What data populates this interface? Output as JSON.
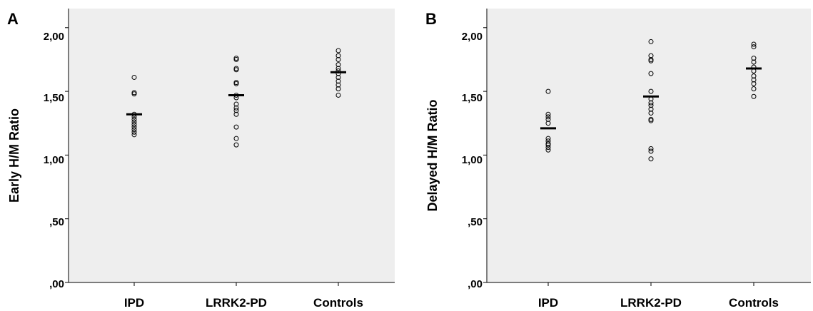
{
  "chart_data": [
    {
      "type": "scatter",
      "panel_label": "A",
      "ylabel": "Early H/M Ratio",
      "xlabel": "",
      "categories": [
        "IPD",
        "LRRK2-PD",
        "Controls"
      ],
      "ylim": [
        0,
        2.15
      ],
      "yticks": [
        0.0,
        0.5,
        1.0,
        1.5,
        2.0
      ],
      "ytick_labels": [
        ",00",
        ",50",
        "1,00",
        "1,50",
        "2,00"
      ],
      "grid": false,
      "points": [
        [
          1.61,
          1.49,
          1.48,
          1.32,
          1.3,
          1.28,
          1.26,
          1.24,
          1.22,
          1.2,
          1.18,
          1.16
        ],
        [
          1.76,
          1.75,
          1.68,
          1.67,
          1.57,
          1.56,
          1.47,
          1.45,
          1.4,
          1.37,
          1.35,
          1.32,
          1.22,
          1.13,
          1.08
        ],
        [
          1.82,
          1.78,
          1.75,
          1.71,
          1.68,
          1.66,
          1.64,
          1.61,
          1.58,
          1.55,
          1.52,
          1.47
        ]
      ],
      "means": [
        1.32,
        1.47,
        1.65
      ],
      "colors": {
        "background": "#eeeeee",
        "marker": "#000000"
      }
    },
    {
      "type": "scatter",
      "panel_label": "B",
      "ylabel": "Delayed H/M Ratio",
      "xlabel": "",
      "categories": [
        "IPD",
        "LRRK2-PD",
        "Controls"
      ],
      "ylim": [
        0,
        2.15
      ],
      "yticks": [
        0.0,
        0.5,
        1.0,
        1.5,
        2.0
      ],
      "ytick_labels": [
        ",00",
        ",50",
        "1,00",
        "1,50",
        "2,00"
      ],
      "grid": false,
      "points": [
        [
          1.5,
          1.32,
          1.3,
          1.28,
          1.25,
          1.13,
          1.11,
          1.09,
          1.08,
          1.06,
          1.04
        ],
        [
          1.89,
          1.78,
          1.75,
          1.74,
          1.64,
          1.5,
          1.44,
          1.41,
          1.39,
          1.36,
          1.33,
          1.28,
          1.27,
          1.05,
          1.03,
          0.97
        ],
        [
          1.87,
          1.85,
          1.76,
          1.73,
          1.69,
          1.66,
          1.62,
          1.59,
          1.56,
          1.52,
          1.46
        ]
      ],
      "means": [
        1.21,
        1.46,
        1.68
      ],
      "colors": {
        "background": "#eeeeee",
        "marker": "#000000"
      }
    }
  ]
}
